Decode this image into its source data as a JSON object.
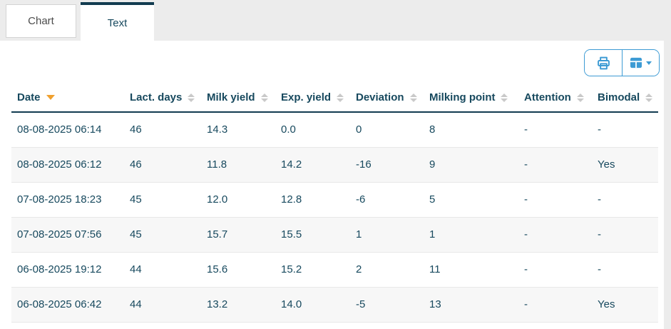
{
  "tabs": [
    {
      "label": "Chart",
      "active": false
    },
    {
      "label": "Text",
      "active": true
    }
  ],
  "toolbar": {
    "buttons": [
      {
        "name": "print",
        "icon": "printer-icon"
      },
      {
        "name": "columns",
        "icon": "table-columns-icon",
        "has_dropdown": true
      }
    ]
  },
  "table": {
    "columns": [
      {
        "label": "Date",
        "sort": "desc"
      },
      {
        "label": "Lact. days",
        "sort": "none"
      },
      {
        "label": "Milk yield",
        "sort": "none"
      },
      {
        "label": "Exp. yield",
        "sort": "none"
      },
      {
        "label": "Deviation",
        "sort": "none"
      },
      {
        "label": "Milking point",
        "sort": "none"
      },
      {
        "label": "Attention",
        "sort": "none"
      },
      {
        "label": "Bimodal",
        "sort": "none"
      }
    ],
    "rows": [
      [
        "08-08-2025 06:14",
        "46",
        "14.3",
        "0.0",
        "0",
        "8",
        "-",
        "-"
      ],
      [
        "08-08-2025 06:12",
        "46",
        "11.8",
        "14.2",
        "-16",
        "9",
        "-",
        "Yes"
      ],
      [
        "07-08-2025 18:23",
        "45",
        "12.0",
        "12.8",
        "-6",
        "5",
        "-",
        "-"
      ],
      [
        "07-08-2025 07:56",
        "45",
        "15.7",
        "15.5",
        "1",
        "1",
        "-",
        "-"
      ],
      [
        "06-08-2025 19:12",
        "44",
        "15.6",
        "15.2",
        "2",
        "11",
        "-",
        "-"
      ],
      [
        "06-08-2025 06:42",
        "44",
        "13.2",
        "14.0",
        "-5",
        "13",
        "-",
        "Yes"
      ]
    ]
  },
  "colors": {
    "accent_blue": "#3d9bd4",
    "navy_text": "#17495e",
    "sort_active_orange": "#f0a02e",
    "tab_active_border": "#123c50",
    "page_background": "#ececec"
  }
}
